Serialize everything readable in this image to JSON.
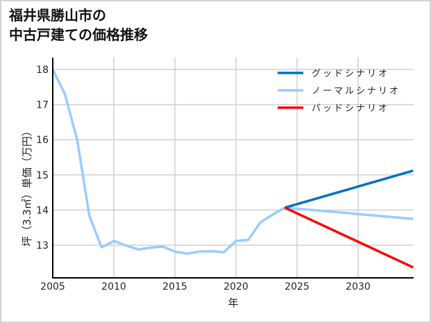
{
  "title": {
    "line1": "福井県勝山市の",
    "line2": "中古戸建ての価格推移"
  },
  "colors": {
    "good": "#0070C0",
    "normal": "#99CCFF",
    "bad": "#FF0000",
    "grid": "#d0d0d0",
    "axis": "#000000"
  },
  "chart_data": {
    "type": "line",
    "title": "福井県勝山市の中古戸建ての価格推移",
    "xlabel": "年",
    "ylabel": "坪（3.3㎡）単価（万円）",
    "xlim": [
      2005,
      2034.5
    ],
    "ylim": [
      12.35,
      18.35
    ],
    "x_ticks": [
      2005,
      2010,
      2015,
      2020,
      2025,
      2030
    ],
    "y_ticks": [
      13,
      14,
      15,
      16,
      17,
      18
    ],
    "grid": true,
    "legend_position": "upper right",
    "series": [
      {
        "name": "グッドシナリオ",
        "color": "#0070C0",
        "x": [
          2024,
          2034.5
        ],
        "values": [
          14.07,
          15.12
        ]
      },
      {
        "name": "ノーマルシナリオ",
        "color": "#99CCFF",
        "x": [
          2005,
          2006,
          2007,
          2008,
          2009,
          2010,
          2011,
          2012,
          2013,
          2014,
          2015,
          2016,
          2017,
          2018,
          2019,
          2020,
          2021,
          2022,
          2023,
          2024,
          2034.5
        ],
        "values": [
          18.0,
          17.29,
          16.0,
          13.83,
          12.94,
          13.12,
          12.99,
          12.88,
          12.93,
          12.96,
          12.82,
          12.76,
          12.82,
          12.83,
          12.8,
          13.12,
          13.15,
          13.65,
          13.87,
          14.07,
          13.75
        ]
      },
      {
        "name": "バッドシナリオ",
        "color": "#FF0000",
        "x": [
          2024,
          2034.5
        ],
        "values": [
          14.07,
          12.37
        ]
      }
    ]
  },
  "axes": {
    "x_ticks": [
      "2005",
      "2010",
      "2015",
      "2020",
      "2025",
      "2030"
    ],
    "y_ticks": [
      "18",
      "17",
      "16",
      "15",
      "14",
      "13"
    ],
    "xlabel": "年",
    "ylabel": "坪（3.3㎡）単価（万円）"
  },
  "legend": [
    {
      "label": "グッドシナリオ",
      "color": "#0070C0"
    },
    {
      "label": "ノーマルシナリオ",
      "color": "#99CCFF"
    },
    {
      "label": "バッドシナリオ",
      "color": "#FF0000"
    }
  ]
}
